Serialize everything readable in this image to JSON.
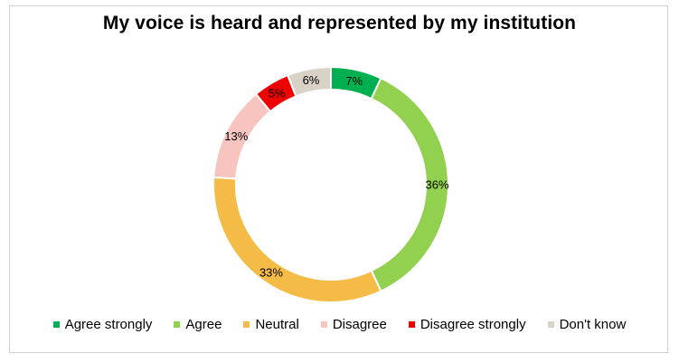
{
  "chart_data": {
    "type": "pie",
    "title": "My voice is heard and represented by my institution",
    "legend_position": "bottom",
    "series": [
      {
        "name": "Agree strongly",
        "value": 7,
        "label": "7%",
        "color": "#00b050"
      },
      {
        "name": "Agree",
        "value": 36,
        "label": "36%",
        "color": "#92d050"
      },
      {
        "name": "Neutral",
        "value": 33,
        "label": "33%",
        "color": "#f4bc47"
      },
      {
        "name": "Disagree",
        "value": 13,
        "label": "13%",
        "color": "#f8c4c0"
      },
      {
        "name": "Disagree strongly",
        "value": 5,
        "label": "5%",
        "color": "#ee0000"
      },
      {
        "name": "Don't know",
        "value": 6,
        "label": "6%",
        "color": "#d9d2c6"
      }
    ]
  }
}
